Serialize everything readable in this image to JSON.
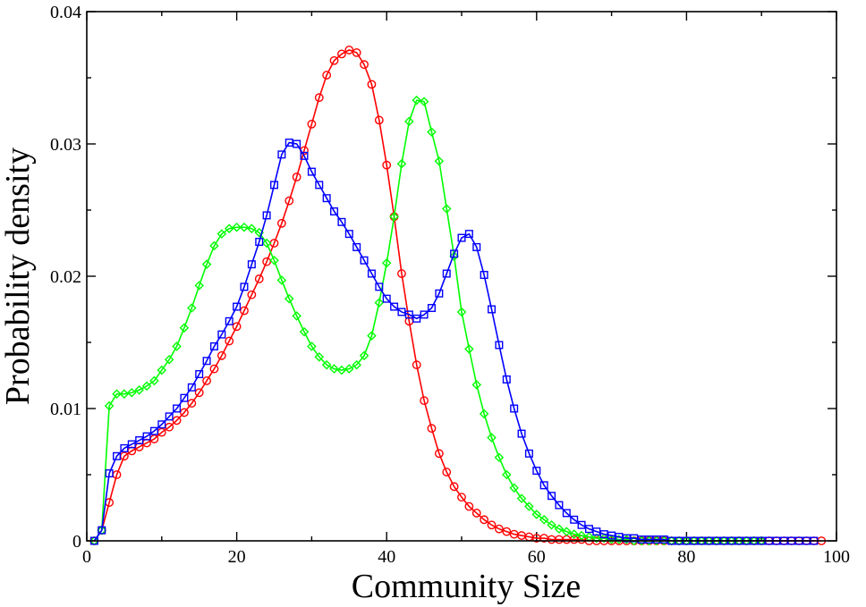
{
  "chart_data": {
    "type": "line",
    "title": "",
    "xlabel": "Community Size",
    "ylabel": "Probability density",
    "xlim": [
      0,
      100
    ],
    "ylim": [
      0,
      0.04
    ],
    "xticks": [
      0,
      20,
      40,
      60,
      80,
      100
    ],
    "xtick_labels": [
      "0",
      "20",
      "40",
      "60",
      "80",
      "100"
    ],
    "yticks": [
      0,
      0.01,
      0.02,
      0.03,
      0.04
    ],
    "ytick_labels": [
      "0",
      "0.01",
      "0.02",
      "0.03",
      "0.04"
    ],
    "grid": false,
    "series": [
      {
        "name": "red-circles",
        "color": "#ff0000",
        "marker": "circle",
        "x": [
          1,
          2,
          3,
          4,
          5,
          6,
          7,
          8,
          9,
          10,
          11,
          12,
          13,
          14,
          15,
          16,
          17,
          18,
          19,
          20,
          21,
          22,
          23,
          24,
          25,
          26,
          27,
          28,
          29,
          30,
          31,
          32,
          33,
          34,
          35,
          36,
          37,
          38,
          39,
          40,
          41,
          42,
          43,
          44,
          45,
          46,
          47,
          48,
          49,
          50,
          51,
          52,
          53,
          54,
          55,
          56,
          57,
          58,
          59,
          60,
          61,
          62,
          63,
          64,
          65,
          66,
          67,
          68,
          69,
          70,
          71,
          72,
          73,
          74,
          75,
          76,
          77,
          78,
          79,
          80,
          81,
          82,
          83,
          84,
          85,
          86,
          87,
          88,
          89,
          90,
          91,
          92,
          93,
          94,
          95,
          96,
          97,
          98
        ],
        "y": [
          0,
          0.0008,
          0.0029,
          0.005,
          0.0064,
          0.0068,
          0.0071,
          0.0074,
          0.0077,
          0.0082,
          0.0086,
          0.0091,
          0.0097,
          0.0104,
          0.0112,
          0.0121,
          0.013,
          0.014,
          0.0151,
          0.0162,
          0.0174,
          0.0186,
          0.0198,
          0.0211,
          0.0225,
          0.024,
          0.0257,
          0.0275,
          0.0295,
          0.0315,
          0.0335,
          0.0352,
          0.0363,
          0.0368,
          0.0371,
          0.0369,
          0.036,
          0.0345,
          0.0318,
          0.0284,
          0.0245,
          0.0202,
          0.0166,
          0.0133,
          0.0106,
          0.0085,
          0.0066,
          0.0052,
          0.0041,
          0.0033,
          0.0026,
          0.0021,
          0.0016,
          0.0012,
          0.0009,
          0.0007,
          0.0005,
          0.0004,
          0.0003,
          0.0002,
          0.0002,
          0.0001,
          0.0001,
          0.0001,
          0.0001,
          0.0001,
          0,
          0,
          0,
          0,
          0,
          0,
          0,
          0,
          0,
          0,
          0,
          0,
          0,
          0,
          0,
          0,
          0,
          0,
          0,
          0,
          0,
          0,
          0,
          0,
          0,
          0,
          0,
          0,
          0,
          0,
          0,
          0
        ]
      },
      {
        "name": "green-diamonds",
        "color": "#00ff00",
        "marker": "diamond",
        "x": [
          1,
          2,
          3,
          4,
          5,
          6,
          7,
          8,
          9,
          10,
          11,
          12,
          13,
          14,
          15,
          16,
          17,
          18,
          19,
          20,
          21,
          22,
          23,
          24,
          25,
          26,
          27,
          28,
          29,
          30,
          31,
          32,
          33,
          34,
          35,
          36,
          37,
          38,
          39,
          40,
          41,
          42,
          43,
          44,
          45,
          46,
          47,
          48,
          49,
          50,
          51,
          52,
          53,
          54,
          55,
          56,
          57,
          58,
          59,
          60,
          61,
          62,
          63,
          64,
          65,
          66,
          67,
          68,
          69,
          70,
          71,
          72,
          73,
          74,
          75,
          76,
          77,
          78,
          79,
          80,
          81,
          82,
          83,
          84,
          85,
          86,
          87,
          88,
          89,
          90
        ],
        "y": [
          0,
          0.0008,
          0.0102,
          0.0111,
          0.0111,
          0.0112,
          0.0114,
          0.0117,
          0.0121,
          0.0129,
          0.0137,
          0.0147,
          0.0161,
          0.0176,
          0.0193,
          0.0209,
          0.0223,
          0.0232,
          0.0236,
          0.0237,
          0.0237,
          0.0236,
          0.0233,
          0.0225,
          0.0212,
          0.0197,
          0.0183,
          0.017,
          0.0158,
          0.0147,
          0.0139,
          0.0133,
          0.013,
          0.0129,
          0.013,
          0.0133,
          0.014,
          0.0155,
          0.018,
          0.021,
          0.0245,
          0.0285,
          0.0317,
          0.0333,
          0.0332,
          0.0309,
          0.0287,
          0.0251,
          0.0215,
          0.0173,
          0.0145,
          0.0118,
          0.0096,
          0.0078,
          0.0063,
          0.005,
          0.004,
          0.0032,
          0.0026,
          0.002,
          0.0016,
          0.0012,
          0.0009,
          0.0007,
          0.0005,
          0.0004,
          0.0003,
          0.0002,
          0.0002,
          0.0001,
          0.0001,
          0.0001,
          0,
          0,
          0,
          0,
          0,
          0,
          0,
          0,
          0,
          0,
          0,
          0,
          0,
          0,
          0,
          0,
          0,
          0
        ]
      },
      {
        "name": "blue-squares",
        "color": "#0000ff",
        "marker": "square",
        "x": [
          1,
          2,
          3,
          4,
          5,
          6,
          7,
          8,
          9,
          10,
          11,
          12,
          13,
          14,
          15,
          16,
          17,
          18,
          19,
          20,
          21,
          22,
          23,
          24,
          25,
          26,
          27,
          28,
          29,
          30,
          31,
          32,
          33,
          34,
          35,
          36,
          37,
          38,
          39,
          40,
          41,
          42,
          43,
          44,
          45,
          46,
          47,
          48,
          49,
          50,
          51,
          52,
          53,
          54,
          55,
          56,
          57,
          58,
          59,
          60,
          61,
          62,
          63,
          64,
          65,
          66,
          67,
          68,
          69,
          70,
          71,
          72,
          73,
          74,
          75,
          76,
          77,
          78,
          79,
          80,
          81,
          82,
          83,
          84,
          85,
          86,
          87,
          88,
          89,
          90,
          91,
          92,
          93,
          94,
          95,
          96,
          97
        ],
        "y": [
          0,
          0.0008,
          0.0051,
          0.0064,
          0.007,
          0.0073,
          0.0076,
          0.0079,
          0.0083,
          0.0088,
          0.0094,
          0.01,
          0.0108,
          0.0116,
          0.0126,
          0.0136,
          0.0147,
          0.0156,
          0.0166,
          0.0177,
          0.0192,
          0.0209,
          0.0226,
          0.0246,
          0.0269,
          0.0292,
          0.0301,
          0.03,
          0.0291,
          0.0279,
          0.0269,
          0.0259,
          0.0249,
          0.0241,
          0.0232,
          0.0222,
          0.0212,
          0.0202,
          0.0192,
          0.0183,
          0.0177,
          0.0173,
          0.0171,
          0.0168,
          0.0171,
          0.0176,
          0.0187,
          0.0202,
          0.0217,
          0.0229,
          0.0232,
          0.0222,
          0.0201,
          0.0175,
          0.0148,
          0.0122,
          0.01,
          0.0081,
          0.0066,
          0.0053,
          0.0042,
          0.0034,
          0.0027,
          0.0021,
          0.0016,
          0.0012,
          0.0009,
          0.0007,
          0.0005,
          0.0004,
          0.0003,
          0.0002,
          0.0002,
          0.0001,
          0.0001,
          0.0001,
          0.0001,
          0,
          0,
          0,
          0,
          0,
          0,
          0,
          0,
          0,
          0,
          0,
          0,
          0,
          0,
          0,
          0,
          0,
          0,
          0,
          0
        ]
      }
    ]
  }
}
